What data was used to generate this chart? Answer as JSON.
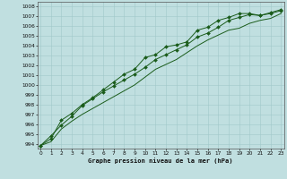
{
  "title": "Graphe pression niveau de la mer (hPa)",
  "bg_color": "#c0dfe0",
  "grid_color": "#a0c8ca",
  "line_color": "#1a5c1a",
  "xlim": [
    -0.3,
    23.3
  ],
  "ylim": [
    993.5,
    1008.5
  ],
  "x": [
    0,
    1,
    2,
    3,
    4,
    5,
    6,
    7,
    8,
    9,
    10,
    11,
    12,
    13,
    14,
    15,
    16,
    17,
    18,
    19,
    20,
    21,
    22,
    23
  ],
  "series1": [
    993.8,
    994.8,
    995.9,
    996.8,
    997.9,
    998.6,
    999.3,
    999.9,
    1000.5,
    1001.1,
    1001.8,
    1002.6,
    1003.1,
    1003.6,
    1004.1,
    1004.9,
    1005.3,
    1005.9,
    1006.6,
    1006.9,
    1007.2,
    1007.1,
    1007.3,
    1007.6
  ],
  "series2": [
    993.8,
    994.5,
    996.4,
    997.1,
    998.0,
    998.7,
    999.5,
    1000.3,
    1001.1,
    1001.6,
    1002.8,
    1003.1,
    1003.9,
    1004.1,
    1004.4,
    1005.6,
    1005.9,
    1006.6,
    1006.9,
    1007.3,
    1007.3,
    1007.1,
    1007.4,
    1007.7
  ],
  "series3": [
    993.8,
    994.2,
    995.5,
    996.3,
    997.0,
    997.6,
    998.2,
    998.8,
    999.4,
    1000.0,
    1000.8,
    1001.6,
    1002.1,
    1002.6,
    1003.3,
    1004.0,
    1004.6,
    1005.1,
    1005.6,
    1005.8,
    1006.3,
    1006.6,
    1006.8,
    1007.3
  ],
  "yticks": [
    994,
    995,
    996,
    997,
    998,
    999,
    1000,
    1001,
    1002,
    1003,
    1004,
    1005,
    1006,
    1007,
    1008
  ],
  "xticks": [
    0,
    1,
    2,
    3,
    4,
    5,
    6,
    7,
    8,
    9,
    10,
    11,
    12,
    13,
    14,
    15,
    16,
    17,
    18,
    19,
    20,
    21,
    22,
    23
  ]
}
